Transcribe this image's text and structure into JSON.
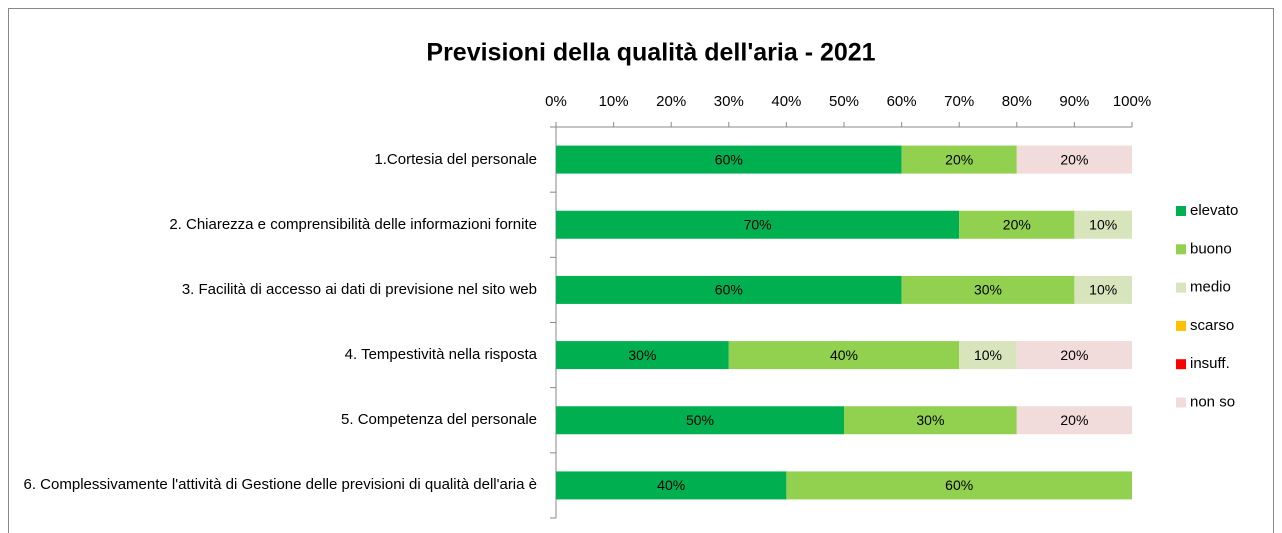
{
  "chart_data": {
    "type": "stacked_bar_horizontal",
    "title": "Previsioni della qualità dell'aria - 2021",
    "categories": [
      "1.Cortesia del personale",
      "2. Chiarezza e comprensibilità delle informazioni fornite",
      "3. Facilità di accesso ai dati di previsione nel sito web",
      "4. Tempestività nella risposta",
      "5. Competenza del personale",
      "6. Complessivamente l'attività di Gestione delle previsioni di qualità dell'aria è"
    ],
    "series": [
      {
        "name": "elevato",
        "color": "#00b050",
        "values": [
          60,
          70,
          60,
          30,
          50,
          40
        ],
        "value_labels": [
          "60%",
          "70%",
          "60%",
          "30%",
          "50%",
          "40%"
        ]
      },
      {
        "name": "buono",
        "color": "#92d050",
        "values": [
          20,
          20,
          30,
          40,
          30,
          60
        ],
        "value_labels": [
          "20%",
          "20%",
          "30%",
          "40%",
          "30%",
          "60%"
        ]
      },
      {
        "name": "medio",
        "color": "#d8e4bc",
        "values": [
          0,
          10,
          10,
          10,
          0,
          0
        ],
        "value_labels": [
          null,
          "10%",
          "10%",
          "10%",
          null,
          null
        ]
      },
      {
        "name": "scarso",
        "color": "#ffc000",
        "values": [
          0,
          0,
          0,
          0,
          0,
          0
        ],
        "value_labels": [
          null,
          null,
          null,
          null,
          null,
          null
        ]
      },
      {
        "name": "insuff.",
        "color": "#ff0000",
        "values": [
          0,
          0,
          0,
          0,
          0,
          0
        ],
        "value_labels": [
          null,
          null,
          null,
          null,
          null,
          null
        ]
      },
      {
        "name": "non so",
        "color": "#f2dcdb",
        "values": [
          20,
          0,
          0,
          20,
          20,
          0
        ],
        "value_labels": [
          "20%",
          null,
          null,
          "20%",
          "20%",
          null
        ]
      }
    ],
    "xlim": [
      0,
      100
    ],
    "xticks": [
      {
        "value": 0,
        "label": "0%"
      },
      {
        "value": 10,
        "label": "10%"
      },
      {
        "value": 20,
        "label": "20%"
      },
      {
        "value": 30,
        "label": "30%"
      },
      {
        "value": 40,
        "label": "40%"
      },
      {
        "value": 50,
        "label": "50%"
      },
      {
        "value": 60,
        "label": "60%"
      },
      {
        "value": 70,
        "label": "70%"
      },
      {
        "value": 80,
        "label": "80%"
      },
      {
        "value": 90,
        "label": "90%"
      },
      {
        "value": 100,
        "label": "100%"
      }
    ],
    "legend": "right"
  }
}
